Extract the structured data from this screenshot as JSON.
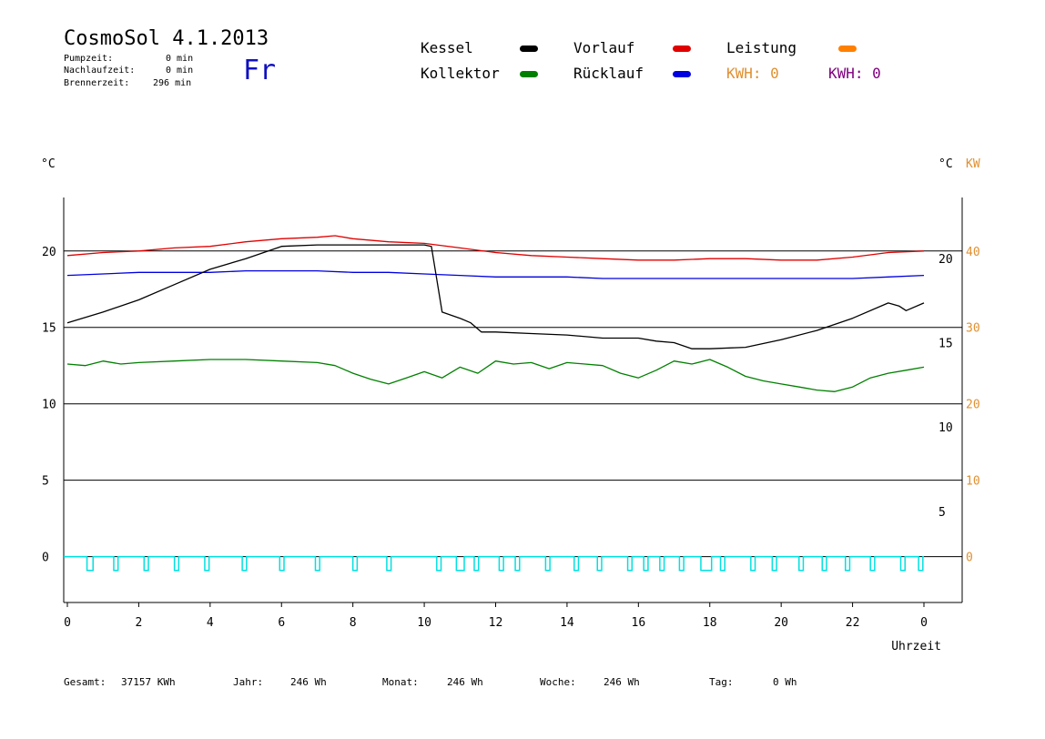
{
  "header": {
    "title": "CosmoSol 4.1.2013",
    "day": "Fr",
    "pump_label": "Pumpzeit:",
    "pump_value": "0 min",
    "nachlauf_label": "Nachlaufzeit:",
    "nachlauf_value": "0 min",
    "brenner_label": "Brennerzeit:",
    "brenner_value": "296 min"
  },
  "legend": {
    "kessel": "Kessel",
    "kollektor": "Kollektor",
    "vorlauf": "Vorlauf",
    "ruecklauf": "Rücklauf",
    "leistung": "Leistung",
    "kwh1": "KWH: 0",
    "kwh2": "KWH: 0"
  },
  "colors": {
    "kessel": "#000000",
    "kollektor": "#008000",
    "vorlauf": "#e00000",
    "ruecklauf": "#0000e0",
    "leistung": "#ff8000",
    "pump": "#00e0e0",
    "kwh2": "#800080",
    "kw_axis": "#e09030",
    "day": "#1010c0"
  },
  "footer": {
    "gesamt_label": "Gesamt:",
    "gesamt_value": "37157 KWh",
    "jahr_label": "Jahr:",
    "jahr_value": "246 Wh",
    "monat_label": "Monat:",
    "monat_value": "246 Wh",
    "woche_label": "Woche:",
    "woche_value": "246 Wh",
    "tag_label": "Tag:",
    "tag_value": "0 Wh"
  },
  "chart_data": {
    "type": "line",
    "xlabel": "Uhrzeit",
    "y_left_unit": "°C",
    "y_right_unit": "°C",
    "y_right2_unit": "KW",
    "xlim": [
      0,
      24
    ],
    "ylim_left": [
      -3,
      23.5
    ],
    "x_tick_labels": [
      "0",
      "2",
      "4",
      "6",
      "8",
      "10",
      "12",
      "14",
      "16",
      "18",
      "20",
      "22",
      "0"
    ],
    "y_left_ticks": [
      0,
      5,
      10,
      15,
      20
    ],
    "y_right_ticks": [
      5,
      10,
      15,
      20
    ],
    "y_right_tick_values": [
      5,
      10,
      15,
      20
    ],
    "y_right_range": [
      -0.4,
      23.6
    ],
    "y_kw_ticks": [
      0,
      10,
      20,
      30,
      40
    ],
    "grid_lines_left": [
      5,
      10,
      15,
      20
    ],
    "series": [
      {
        "name": "Vorlauf",
        "x": [
          0,
          1,
          2,
          3,
          4,
          5,
          6,
          7,
          7.5,
          8,
          9,
          10,
          11,
          12,
          13,
          14,
          15,
          16,
          17,
          18,
          19,
          20,
          21,
          22,
          23,
          24
        ],
        "y": [
          19.7,
          19.9,
          20.0,
          20.2,
          20.3,
          20.6,
          20.8,
          20.9,
          21.0,
          20.8,
          20.6,
          20.5,
          20.2,
          19.9,
          19.7,
          19.6,
          19.5,
          19.4,
          19.4,
          19.5,
          19.5,
          19.4,
          19.4,
          19.6,
          19.9,
          20.0
        ]
      },
      {
        "name": "Rücklauf",
        "x": [
          0,
          1,
          2,
          3,
          4,
          5,
          6,
          7,
          8,
          9,
          10,
          11,
          12,
          13,
          14,
          15,
          16,
          17,
          18,
          19,
          20,
          21,
          22,
          23,
          24
        ],
        "y": [
          18.4,
          18.5,
          18.6,
          18.6,
          18.6,
          18.7,
          18.7,
          18.7,
          18.6,
          18.6,
          18.5,
          18.4,
          18.3,
          18.3,
          18.3,
          18.2,
          18.2,
          18.2,
          18.2,
          18.2,
          18.2,
          18.2,
          18.2,
          18.3,
          18.4
        ]
      },
      {
        "name": "Kessel",
        "x": [
          0,
          1,
          2,
          3,
          4,
          5,
          6,
          7,
          8,
          9,
          10,
          10.2,
          10.5,
          11,
          11.3,
          11.6,
          12,
          13,
          14,
          15,
          16,
          16.5,
          17,
          17.5,
          18,
          19,
          20,
          21,
          22,
          23,
          23.3,
          23.5,
          24
        ],
        "y": [
          15.3,
          16.0,
          16.8,
          17.8,
          18.8,
          19.5,
          20.3,
          20.4,
          20.4,
          20.4,
          20.4,
          20.3,
          16.0,
          15.6,
          15.3,
          14.7,
          14.7,
          14.6,
          14.5,
          14.3,
          14.3,
          14.1,
          14.0,
          13.6,
          13.6,
          13.7,
          14.2,
          14.8,
          15.6,
          16.6,
          16.4,
          16.1,
          16.6
        ]
      },
      {
        "name": "Kollektor",
        "x": [
          0,
          0.5,
          1,
          1.5,
          2,
          3,
          4,
          5,
          6,
          7,
          7.5,
          8,
          8.5,
          9,
          9.5,
          10,
          10.5,
          11,
          11.5,
          12,
          12.5,
          13,
          13.5,
          14,
          14.5,
          15,
          15.5,
          16,
          16.5,
          17,
          17.5,
          18,
          18.5,
          19,
          19.5,
          20,
          20.5,
          21,
          21.5,
          22,
          22.5,
          23,
          23.5,
          24
        ],
        "y": [
          12.6,
          12.5,
          12.8,
          12.6,
          12.7,
          12.8,
          12.9,
          12.9,
          12.8,
          12.7,
          12.5,
          12.0,
          11.6,
          11.3,
          11.7,
          12.1,
          11.7,
          12.4,
          12.0,
          12.8,
          12.6,
          12.7,
          12.3,
          12.7,
          12.6,
          12.5,
          12.0,
          11.7,
          12.2,
          12.8,
          12.6,
          12.9,
          12.4,
          11.8,
          11.5,
          11.3,
          11.1,
          10.9,
          10.8,
          11.1,
          11.7,
          12.0,
          12.2,
          12.4
        ]
      }
    ],
    "pump_on_intervals": [
      [
        0.55,
        0.72
      ],
      [
        1.3,
        1.42
      ],
      [
        2.15,
        2.27
      ],
      [
        3.0,
        3.12
      ],
      [
        3.85,
        3.97
      ],
      [
        4.9,
        5.02
      ],
      [
        5.95,
        6.07
      ],
      [
        6.95,
        7.07
      ],
      [
        8.0,
        8.12
      ],
      [
        8.95,
        9.07
      ],
      [
        10.35,
        10.47
      ],
      [
        10.9,
        11.12
      ],
      [
        11.4,
        11.52
      ],
      [
        12.1,
        12.22
      ],
      [
        12.55,
        12.67
      ],
      [
        13.4,
        13.52
      ],
      [
        14.2,
        14.32
      ],
      [
        14.85,
        14.97
      ],
      [
        15.7,
        15.82
      ],
      [
        16.15,
        16.27
      ],
      [
        16.6,
        16.72
      ],
      [
        17.15,
        17.27
      ],
      [
        17.75,
        18.05
      ],
      [
        18.3,
        18.42
      ],
      [
        19.15,
        19.27
      ],
      [
        19.75,
        19.87
      ],
      [
        20.5,
        20.62
      ],
      [
        21.15,
        21.27
      ],
      [
        21.8,
        21.92
      ],
      [
        22.5,
        22.62
      ],
      [
        23.35,
        23.47
      ],
      [
        23.85,
        23.97
      ]
    ],
    "pump_depth": -0.9
  }
}
